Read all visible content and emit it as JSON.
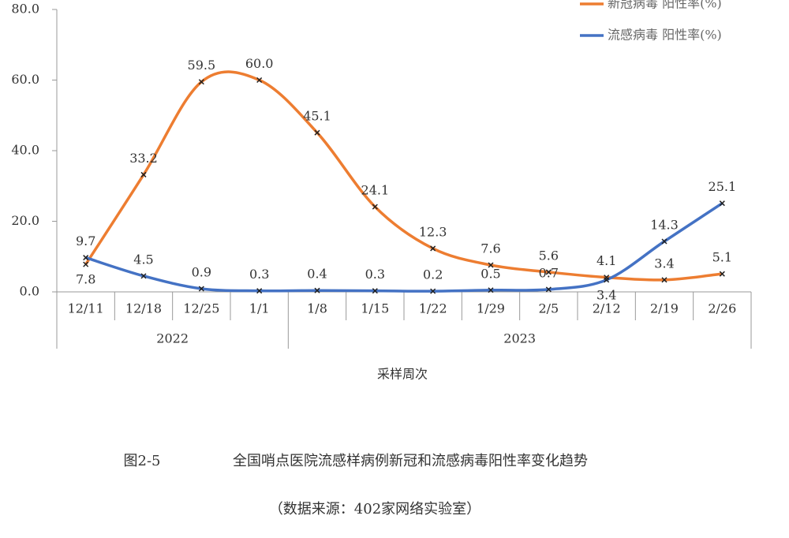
{
  "chart_data": {
    "type": "line",
    "caption_number": "图2-5",
    "caption": "全国哨点医院流感样病例新冠和流感病毒阳性率变化趋势",
    "source": "（数据来源：402家网络实验室）",
    "x_label": "采样周次",
    "categories": [
      "12/11",
      "12/18",
      "12/25",
      "1/1",
      "1/8",
      "1/15",
      "1/22",
      "1/29",
      "2/5",
      "2/12",
      "2/19",
      "2/26"
    ],
    "x_groups": [
      {
        "label": "2022",
        "count": 4
      },
      {
        "label": "2023",
        "count": 8
      }
    ],
    "series": [
      {
        "name": "新冠病毒 阳性率(%)",
        "color": "#ed7d31",
        "values": [
          7.8,
          33.2,
          59.5,
          60.0,
          45.1,
          24.1,
          12.3,
          7.6,
          5.6,
          4.1,
          3.4,
          5.1
        ],
        "value_labels": [
          "7.8",
          "33.2",
          "59.5",
          "60.0",
          "45.1",
          "24.1",
          "12.3",
          "7.6",
          "5.6",
          "4.1",
          "3.4",
          "5.1"
        ]
      },
      {
        "name": "流感病毒 阳性率(%)",
        "color": "#4472c4",
        "values": [
          9.7,
          4.5,
          0.9,
          0.3,
          0.4,
          0.3,
          0.2,
          0.5,
          0.7,
          3.4,
          14.3,
          25.1
        ],
        "value_labels": [
          "9.7",
          "4.5",
          "0.9",
          "0.3",
          "0.4",
          "0.3",
          "0.2",
          "0.5",
          "0.7",
          "3.4",
          "14.3",
          "25.1"
        ]
      }
    ],
    "ylim": [
      0,
      80
    ],
    "yticks": [
      {
        "value": 0,
        "label": "0.0"
      },
      {
        "value": 20,
        "label": "20.0"
      },
      {
        "value": 40,
        "label": "40.0"
      },
      {
        "value": 60,
        "label": "60.0"
      },
      {
        "value": 80,
        "label": "80.0"
      }
    ],
    "smooth": true,
    "legend": "top-right"
  }
}
